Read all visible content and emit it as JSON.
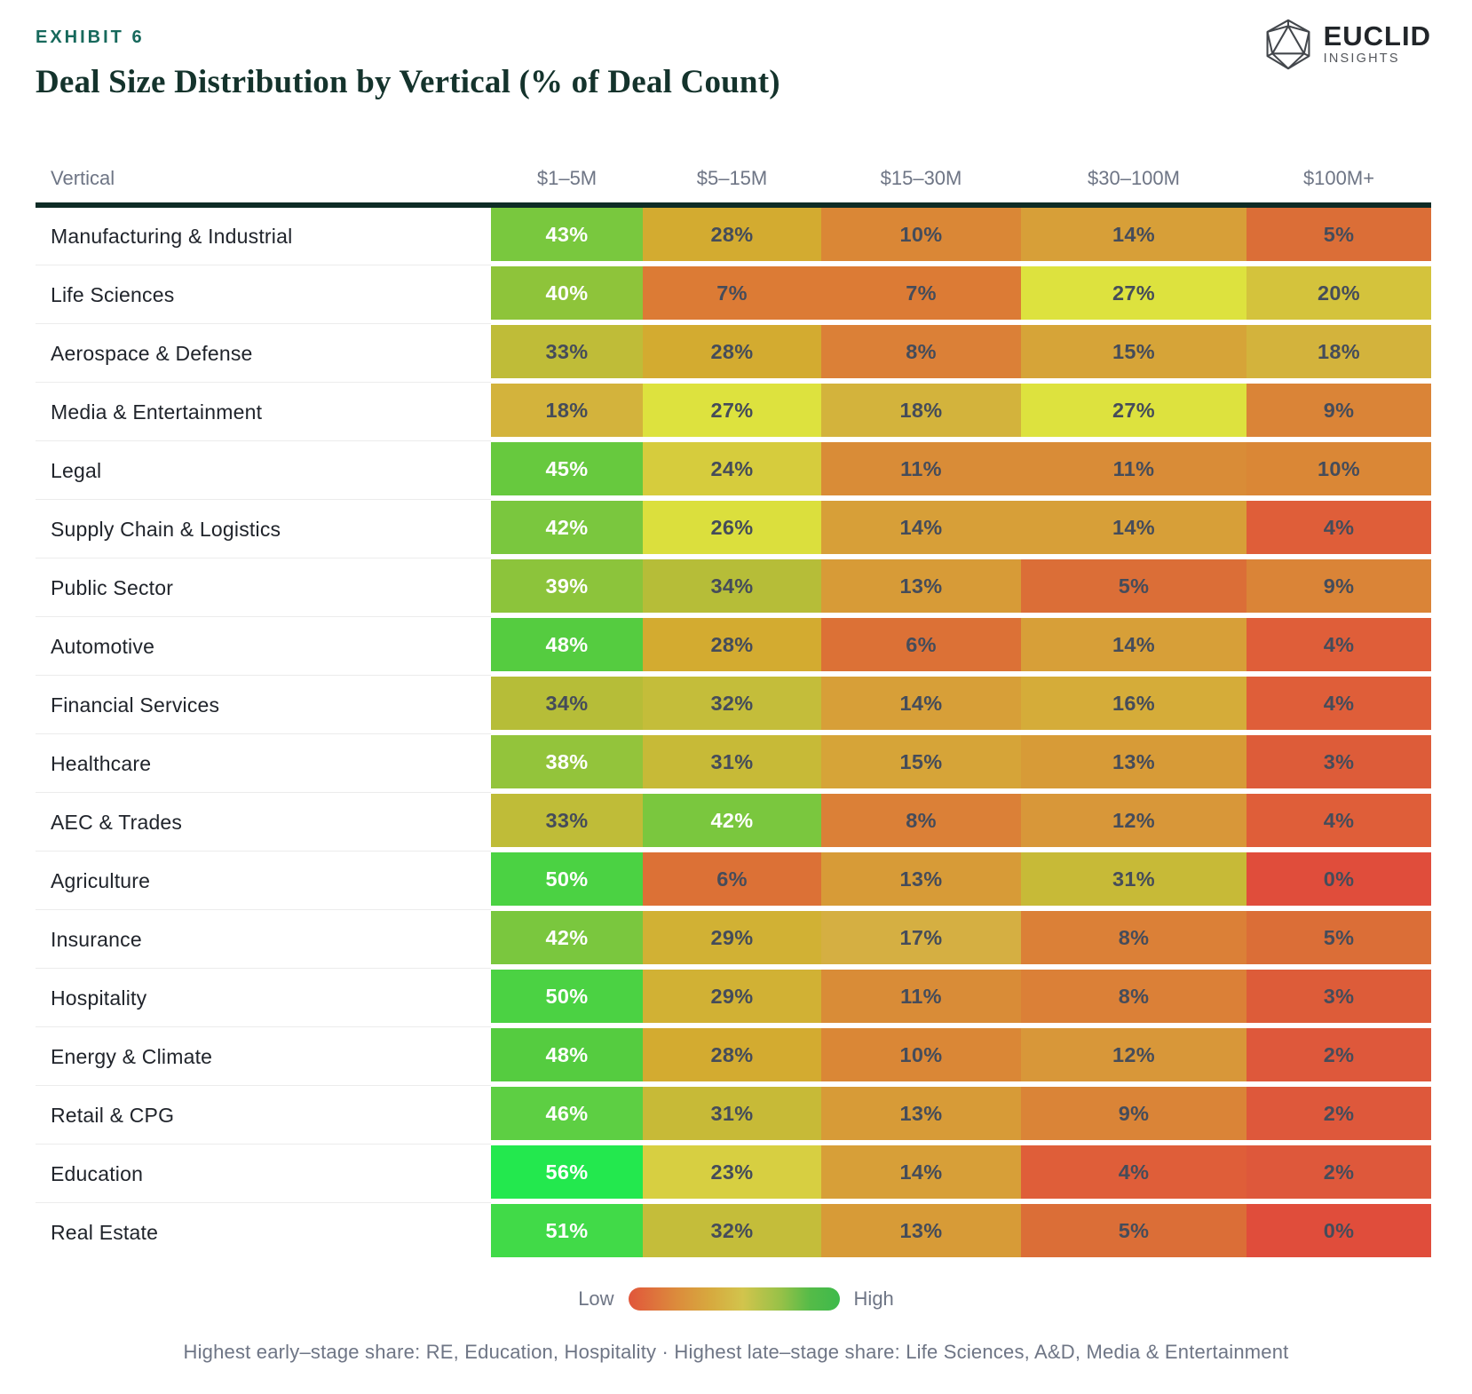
{
  "header": {
    "exhibit_label": "EXHIBIT 6",
    "title": "Deal Size Distribution by Vertical (% of Deal Count)"
  },
  "brand": {
    "name": "EUCLID",
    "subtitle": "INSIGHTS"
  },
  "chart_data": {
    "type": "heatmap",
    "title": "Deal Size Distribution by Vertical (% of Deal Count)",
    "unit": "% of deal count",
    "row_label_header": "Vertical",
    "columns": [
      "$1–5M",
      "$5–15M",
      "$15–30M",
      "$30–100M",
      "$100M+"
    ],
    "rows": [
      "Manufacturing & Industrial",
      "Life Sciences",
      "Aerospace & Defense",
      "Media & Entertainment",
      "Legal",
      "Supply Chain & Logistics",
      "Public Sector",
      "Automotive",
      "Financial Services",
      "Healthcare",
      "AEC & Trades",
      "Agriculture",
      "Insurance",
      "Hospitality",
      "Energy & Climate",
      "Retail & CPG",
      "Education",
      "Real Estate"
    ],
    "values": [
      [
        43,
        28,
        10,
        14,
        5
      ],
      [
        40,
        7,
        7,
        27,
        20
      ],
      [
        33,
        28,
        8,
        15,
        18
      ],
      [
        18,
        27,
        18,
        27,
        9
      ],
      [
        45,
        24,
        11,
        11,
        10
      ],
      [
        42,
        26,
        14,
        14,
        4
      ],
      [
        39,
        34,
        13,
        5,
        9
      ],
      [
        48,
        28,
        6,
        14,
        4
      ],
      [
        34,
        32,
        14,
        16,
        4
      ],
      [
        38,
        31,
        15,
        13,
        3
      ],
      [
        33,
        42,
        8,
        12,
        4
      ],
      [
        50,
        6,
        13,
        31,
        0
      ],
      [
        42,
        29,
        17,
        8,
        5
      ],
      [
        50,
        29,
        11,
        8,
        3
      ],
      [
        48,
        28,
        10,
        12,
        2
      ],
      [
        46,
        31,
        13,
        9,
        2
      ],
      [
        56,
        23,
        14,
        4,
        2
      ],
      [
        51,
        32,
        13,
        5,
        0
      ]
    ],
    "legend": {
      "low": "Low",
      "high": "High"
    },
    "color_scale": {
      "0": "#e04d3b",
      "2": "#de583b",
      "3": "#dd5c39",
      "4": "#df5e39",
      "5": "#db6e37",
      "6": "#dc7136",
      "7": "#dc7b35",
      "8": "#db8037",
      "9": "#da8437",
      "10": "#da8736",
      "11": "#d98c37",
      "12": "#d89739",
      "13": "#d79b37",
      "14": "#d79f38",
      "15": "#d6a438",
      "16": "#d5ac39",
      "17": "#d5af42",
      "18": "#d3b33c",
      "20": "#d4c33c",
      "23": "#d7cf41",
      "24": "#d6cc3d",
      "26": "#dbdf3d",
      "27": "#dde23e",
      "28": "#d3ab30",
      "29": "#d1b134",
      "31": "#c7ba37",
      "32": "#c4bd3a",
      "33": "#bfbc38",
      "34": "#b6bd38",
      "38": "#93c43b",
      "39": "#8cc43b",
      "40": "#8ec43a",
      "42": "#7ac73e",
      "43": "#79c83e",
      "45": "#67c93e",
      "46": "#5dcf43",
      "48": "#55cc40",
      "50": "#4bd243",
      "51": "#41da48",
      "56": "#23e84e"
    },
    "light_text_threshold": 38
  },
  "footnote": "Highest early–stage share: RE, Education, Hospitality · Highest late–stage share: Life Sciences, A&D, Media & Entertainment",
  "colors": {
    "accent_teal": "#17695c",
    "title_ink": "#14332c",
    "header_text": "#6e7585",
    "header_rule": "#0e2c26",
    "cell_text_dark": "#454c5a",
    "cell_text_light": "#ffffff",
    "legend_low": "#e1563b",
    "legend_high": "#3dba4b"
  }
}
